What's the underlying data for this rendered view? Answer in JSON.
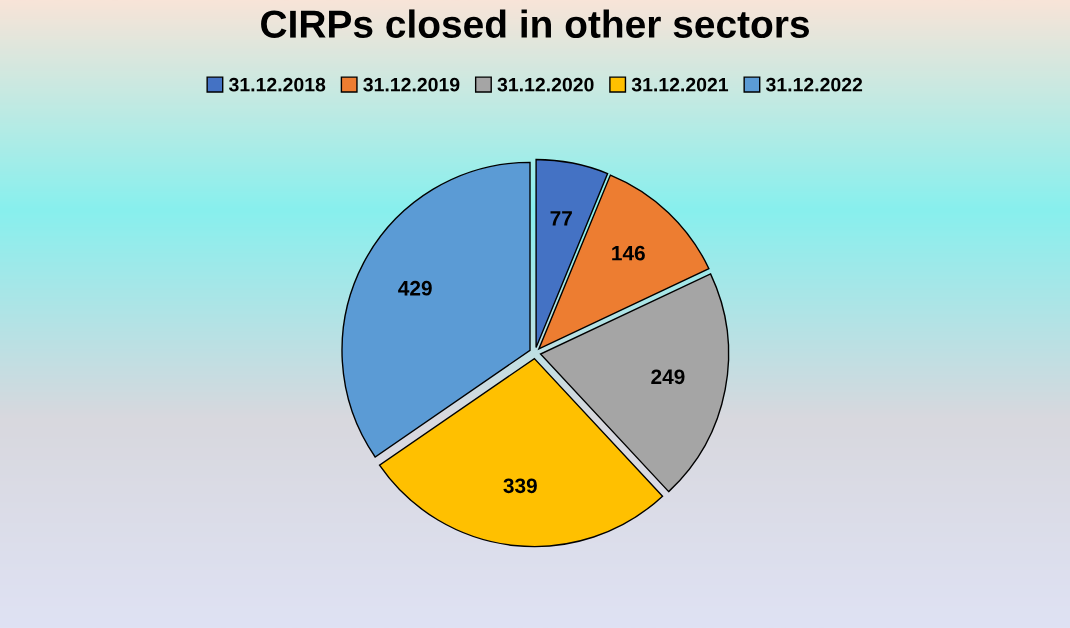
{
  "chart_data": {
    "type": "pie",
    "title": "CIRPs closed in other sectors",
    "categories": [
      "31.12.2018",
      "31.12.2019",
      "31.12.2020",
      "31.12.2021",
      "31.12.2022"
    ],
    "values": [
      77,
      146,
      249,
      339,
      429
    ],
    "colors": [
      "#4472c4",
      "#ed7d31",
      "#a5a5a5",
      "#ffc000",
      "#5b9bd5"
    ],
    "data_labels": true,
    "legend": "top"
  }
}
